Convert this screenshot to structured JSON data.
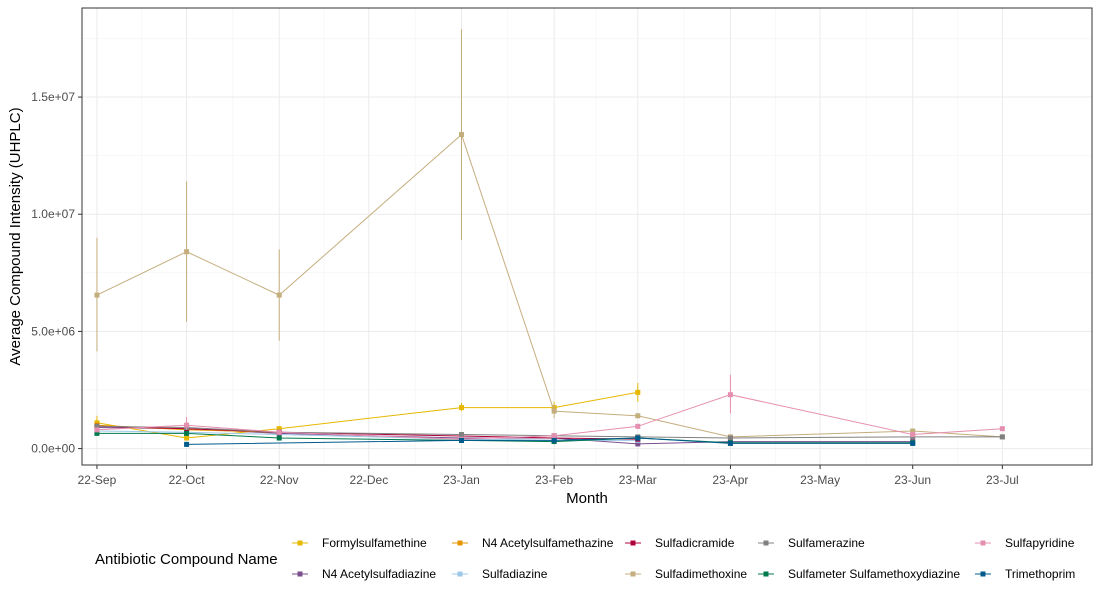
{
  "chart_data": {
    "type": "line",
    "xlabel": "Month",
    "ylabel": "Average Compound Intensity (UHPLC)",
    "x_ticks": [
      "22-Sep",
      "22-Oct",
      "22-Nov",
      "22-Dec",
      "23-Jan",
      "23-Feb",
      "23-Mar",
      "23-Apr",
      "23-May",
      "23-Jun",
      "23-Jul"
    ],
    "y_ticks": [
      {
        "value": 0,
        "label": "0.0e+00"
      },
      {
        "value": 5000000,
        "label": "5.0e+06"
      },
      {
        "value": 10000000,
        "label": "1.0e+07"
      },
      {
        "value": 15000000,
        "label": "1.5e+07"
      }
    ],
    "xlim": [
      "2022-08-27",
      "2023-07-31"
    ],
    "ylim": [
      -700000,
      18800000
    ],
    "grid": true,
    "legend_title": "Antibiotic Compound Name",
    "legend_position": "bottom",
    "series": [
      {
        "name": "Formylsulfamethine",
        "color": "#E6B800",
        "points": [
          [
            "2022-09-01",
            1100000
          ],
          [
            "2022-10-01",
            450000
          ],
          [
            "2022-11-01",
            850000
          ],
          [
            "2023-01-01",
            1750000
          ],
          [
            "2023-02-01",
            1750000
          ],
          [
            "2023-03-01",
            2400000
          ]
        ],
        "errors": [
          [
            "2022-09-01",
            850000,
            1400000
          ],
          [
            "2023-01-01",
            1600000,
            1950000
          ],
          [
            "2023-02-01",
            1500000,
            2000000
          ],
          [
            "2023-03-01",
            2000000,
            2800000
          ]
        ]
      },
      {
        "name": "N4 Acetylsulfadiazine",
        "color": "#7B4F8E",
        "points": [
          [
            "2022-09-01",
            900000
          ],
          [
            "2022-10-01",
            850000
          ],
          [
            "2022-11-01",
            650000
          ],
          [
            "2023-01-01",
            450000
          ],
          [
            "2023-02-01",
            450000
          ],
          [
            "2023-03-01",
            200000
          ],
          [
            "2023-04-01",
            300000
          ],
          [
            "2023-06-01",
            300000
          ]
        ],
        "errors": []
      },
      {
        "name": "N4 Acetylsulfamethazine",
        "color": "#E69500",
        "points": [
          [
            "2022-09-01",
            1000000
          ],
          [
            "2022-10-01",
            800000
          ],
          [
            "2022-11-01",
            700000
          ]
        ],
        "errors": []
      },
      {
        "name": "Sulfadiazine",
        "color": "#9DC8E8",
        "points": [
          [
            "2022-09-01",
            750000
          ],
          [
            "2022-10-01",
            700000
          ],
          [
            "2023-01-01",
            400000
          ],
          [
            "2023-02-01",
            350000
          ],
          [
            "2023-03-01",
            350000
          ]
        ],
        "errors": []
      },
      {
        "name": "Sulfadicramide",
        "color": "#B0003A",
        "points": [
          [
            "2022-09-01",
            950000
          ],
          [
            "2022-10-01",
            850000
          ],
          [
            "2022-11-01",
            700000
          ],
          [
            "2023-02-01",
            450000
          ],
          [
            "2023-03-01",
            400000
          ]
        ],
        "errors": []
      },
      {
        "name": "Sulfadimethoxine",
        "color": "#C5AE7E",
        "points": [
          [
            "2022-09-01",
            6550000
          ],
          [
            "2022-10-01",
            8400000
          ],
          [
            "2022-11-01",
            6550000
          ],
          [
            "2023-01-01",
            13400000
          ],
          [
            "2023-02-01",
            1600000
          ],
          [
            "2023-03-01",
            1400000
          ],
          [
            "2023-04-01",
            500000
          ],
          [
            "2023-06-01",
            750000
          ],
          [
            "2023-07-01",
            500000
          ]
        ],
        "errors": [
          [
            "2022-09-01",
            4150000,
            9000000
          ],
          [
            "2022-10-01",
            5400000,
            11400000
          ],
          [
            "2022-11-01",
            4600000,
            8500000
          ],
          [
            "2023-01-01",
            8900000,
            17900000
          ],
          [
            "2023-02-01",
            1300000,
            1900000
          ]
        ]
      },
      {
        "name": "Sulfamerazine",
        "color": "#808080",
        "points": [
          [
            "2022-09-01",
            950000
          ],
          [
            "2022-10-01",
            900000
          ],
          [
            "2022-11-01",
            700000
          ],
          [
            "2023-01-01",
            600000
          ],
          [
            "2023-02-01",
            550000
          ],
          [
            "2023-03-01",
            500000
          ],
          [
            "2023-04-01",
            450000
          ],
          [
            "2023-06-01",
            500000
          ],
          [
            "2023-07-01",
            500000
          ]
        ],
        "errors": []
      },
      {
        "name": "Sulfameter Sulfamethoxydiazine",
        "color": "#007A4D",
        "points": [
          [
            "2022-09-01",
            650000
          ],
          [
            "2022-10-01",
            650000
          ],
          [
            "2022-11-01",
            450000
          ],
          [
            "2023-01-01",
            350000
          ],
          [
            "2023-02-01",
            300000
          ],
          [
            "2023-03-01",
            450000
          ],
          [
            "2023-04-01",
            250000
          ],
          [
            "2023-06-01",
            250000
          ]
        ],
        "errors": []
      },
      {
        "name": "Sulfapyridine",
        "color": "#E58FB0",
        "points": [
          [
            "2022-09-01",
            800000
          ],
          [
            "2022-10-01",
            1000000
          ],
          [
            "2022-11-01",
            700000
          ],
          [
            "2023-01-01",
            400000
          ],
          [
            "2023-02-01",
            550000
          ],
          [
            "2023-03-01",
            950000
          ],
          [
            "2023-04-01",
            2300000
          ],
          [
            "2023-06-01",
            600000
          ],
          [
            "2023-07-01",
            850000
          ]
        ],
        "errors": [
          [
            "2022-10-01",
            800000,
            1350000
          ],
          [
            "2023-04-01",
            1500000,
            3150000
          ]
        ]
      },
      {
        "name": "Trimethoprim",
        "color": "#005B8C",
        "points": [
          [
            "2022-10-01",
            180000
          ],
          [
            "2023-01-01",
            350000
          ],
          [
            "2023-02-01",
            350000
          ],
          [
            "2023-03-01",
            450000
          ],
          [
            "2023-04-01",
            220000
          ],
          [
            "2023-06-01",
            220000
          ]
        ],
        "errors": []
      }
    ]
  }
}
